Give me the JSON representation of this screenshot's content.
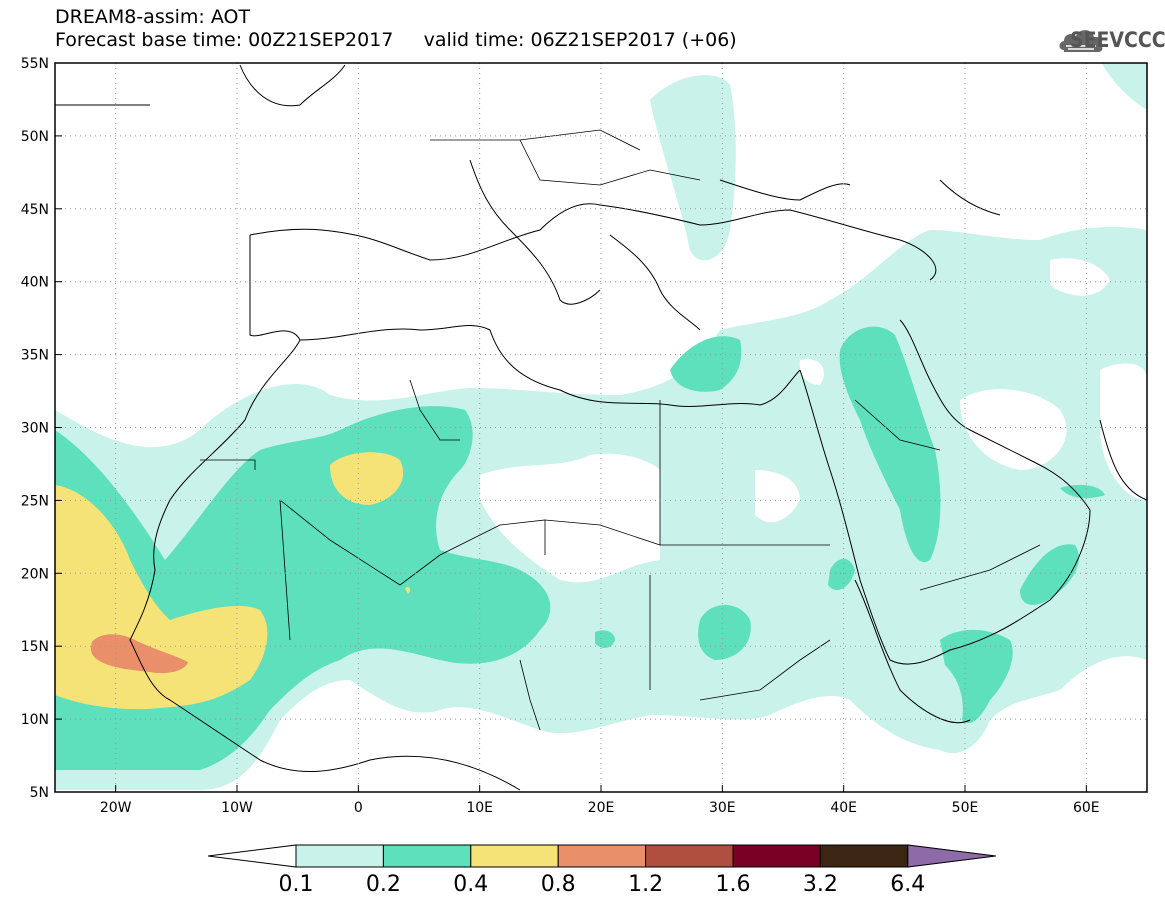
{
  "title": {
    "line1": "DREAM8-assim: AOT",
    "line2": "Forecast base time: 00Z21SEP2017     valid time: 06Z21SEP2017 (+06)"
  },
  "logo": {
    "text": "SEEVCCC",
    "icon": "cloud-icon"
  },
  "map": {
    "lon_range": [
      -25,
      65
    ],
    "lat_range": [
      5,
      55
    ],
    "lat_ticks": [
      "5N",
      "10N",
      "15N",
      "20N",
      "25N",
      "30N",
      "35N",
      "40N",
      "45N",
      "50N",
      "55N"
    ],
    "lon_ticks": [
      "20W",
      "10W",
      "0",
      "10E",
      "20E",
      "30E",
      "40E",
      "50E",
      "60E"
    ],
    "lat_values": [
      5,
      10,
      15,
      20,
      25,
      30,
      35,
      40,
      45,
      50,
      55
    ],
    "lon_values": [
      -20,
      -10,
      0,
      10,
      20,
      30,
      40,
      50,
      60
    ],
    "grid": true
  },
  "colorbar": {
    "labels": [
      "0.1",
      "0.2",
      "0.4",
      "0.8",
      "1.2",
      "1.6",
      "3.2",
      "6.4"
    ],
    "colors": [
      "#c8f2ea",
      "#5de0bb",
      "#f5e378",
      "#e98f6a",
      "#b04f40",
      "#7a0026",
      "#3b2614",
      "#8d6aa8"
    ],
    "low_color": "#ffffff"
  },
  "colors": {
    "aot_01": "#c8f2ea",
    "aot_02": "#5de0bb",
    "aot_04": "#f5e378",
    "aot_08": "#e98f6a"
  }
}
